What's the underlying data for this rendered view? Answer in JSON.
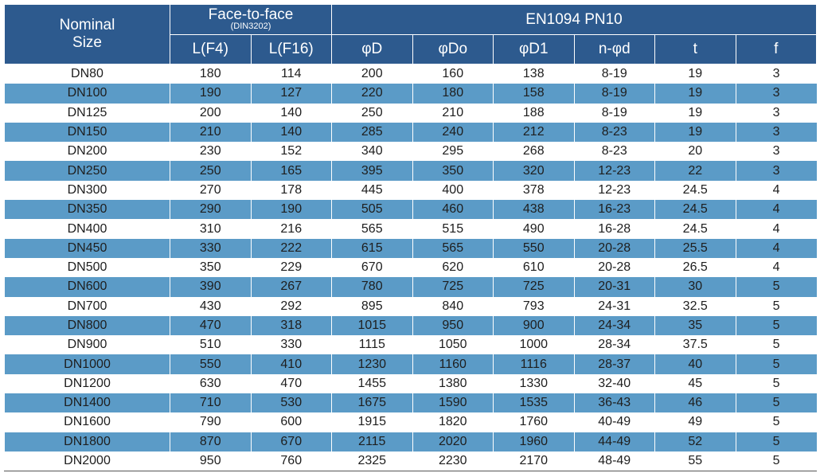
{
  "header": {
    "nominal": "Nominal Size",
    "face_to_face": "Face-to-face",
    "face_to_face_sub": "(DIN3202)",
    "standard": "EN1094 PN10",
    "columns": [
      "L(F4)",
      "L(F16)",
      "φD",
      "φDo",
      "φD1",
      "n-φd",
      "t",
      "f"
    ]
  },
  "rows": [
    [
      "DN80",
      "180",
      "114",
      "200",
      "160",
      "138",
      "8-19",
      "19",
      "3"
    ],
    [
      "DN100",
      "190",
      "127",
      "220",
      "180",
      "158",
      "8-19",
      "19",
      "3"
    ],
    [
      "DN125",
      "200",
      "140",
      "250",
      "210",
      "188",
      "8-19",
      "19",
      "3"
    ],
    [
      "DN150",
      "210",
      "140",
      "285",
      "240",
      "212",
      "8-23",
      "19",
      "3"
    ],
    [
      "DN200",
      "230",
      "152",
      "340",
      "295",
      "268",
      "8-23",
      "20",
      "3"
    ],
    [
      "DN250",
      "250",
      "165",
      "395",
      "350",
      "320",
      "12-23",
      "22",
      "3"
    ],
    [
      "DN300",
      "270",
      "178",
      "445",
      "400",
      "378",
      "12-23",
      "24.5",
      "4"
    ],
    [
      "DN350",
      "290",
      "190",
      "505",
      "460",
      "438",
      "16-23",
      "24.5",
      "4"
    ],
    [
      "DN400",
      "310",
      "216",
      "565",
      "515",
      "490",
      "16-28",
      "24.5",
      "4"
    ],
    [
      "DN450",
      "330",
      "222",
      "615",
      "565",
      "550",
      "20-28",
      "25.5",
      "4"
    ],
    [
      "DN500",
      "350",
      "229",
      "670",
      "620",
      "610",
      "20-28",
      "26.5",
      "4"
    ],
    [
      "DN600",
      "390",
      "267",
      "780",
      "725",
      "725",
      "20-31",
      "30",
      "5"
    ],
    [
      "DN700",
      "430",
      "292",
      "895",
      "840",
      "793",
      "24-31",
      "32.5",
      "5"
    ],
    [
      "DN800",
      "470",
      "318",
      "1015",
      "950",
      "900",
      "24-34",
      "35",
      "5"
    ],
    [
      "DN900",
      "510",
      "330",
      "1115",
      "1050",
      "1000",
      "28-34",
      "37.5",
      "5"
    ],
    [
      "DN1000",
      "550",
      "410",
      "1230",
      "1160",
      "1116",
      "28-37",
      "40",
      "5"
    ],
    [
      "DN1200",
      "630",
      "470",
      "1455",
      "1380",
      "1330",
      "32-40",
      "45",
      "5"
    ],
    [
      "DN1400",
      "710",
      "530",
      "1675",
      "1590",
      "1535",
      "36-43",
      "46",
      "5"
    ],
    [
      "DN1600",
      "790",
      "600",
      "1915",
      "1820",
      "1760",
      "40-49",
      "49",
      "5"
    ],
    [
      "DN1800",
      "870",
      "670",
      "2115",
      "2020",
      "1960",
      "44-49",
      "52",
      "5"
    ],
    [
      "DN2000",
      "950",
      "760",
      "2325",
      "2230",
      "2170",
      "48-49",
      "55",
      "5"
    ]
  ],
  "colors": {
    "header_bg": "#2d5a8e",
    "stripe": "#5b9bc7"
  }
}
